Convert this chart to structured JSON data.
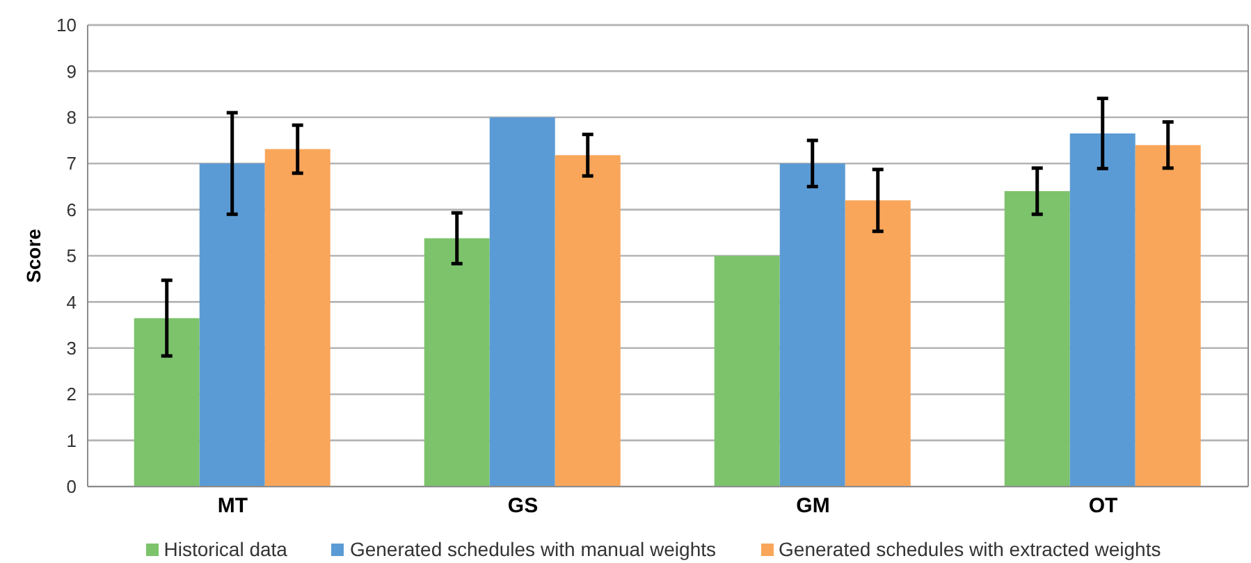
{
  "chart_data": {
    "type": "bar",
    "ylabel": "Score",
    "categories": [
      "MT",
      "GS",
      "GM",
      "OT"
    ],
    "series": [
      {
        "name": "Historical data",
        "color": "#7cc36c",
        "values": [
          3.65,
          5.38,
          5.0,
          6.4
        ],
        "errors": [
          0.82,
          0.55,
          0,
          0.5
        ]
      },
      {
        "name": "Generated schedules with manual weights",
        "color": "#5b9bd5",
        "values": [
          7.0,
          8.0,
          7.0,
          7.65
        ],
        "errors": [
          1.1,
          0,
          0.5,
          0.76
        ]
      },
      {
        "name": "Generated schedules with extracted weights",
        "color": "#f9a65a",
        "values": [
          7.31,
          7.18,
          6.2,
          7.4
        ],
        "errors": [
          0.52,
          0.45,
          0.67,
          0.5
        ]
      }
    ],
    "ylim": [
      0,
      10
    ],
    "yticks": [
      0,
      1,
      2,
      3,
      4,
      5,
      6,
      7,
      8,
      9,
      10
    ],
    "grid": "y",
    "legend": "bottom"
  }
}
